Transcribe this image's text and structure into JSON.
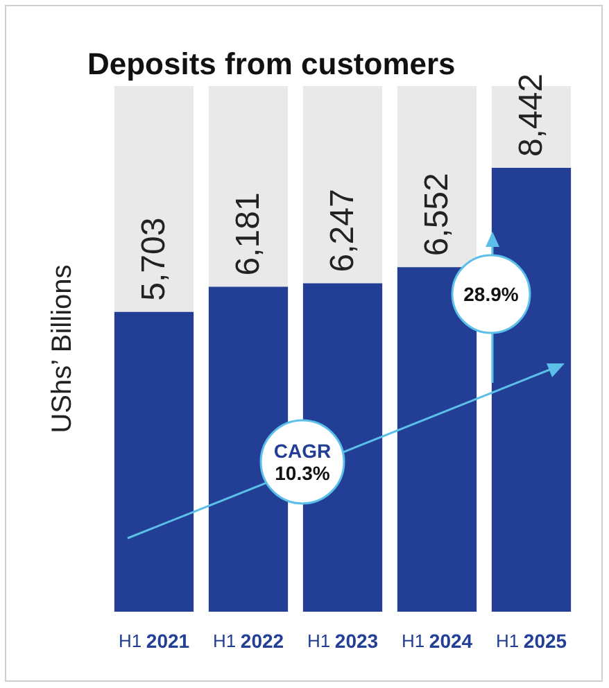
{
  "chart_data": {
    "type": "bar",
    "title": "Deposits from customers",
    "ylabel": "UShs’ Billions",
    "categories": [
      "H1 2021",
      "H1 2022",
      "H1 2023",
      "H1 2024",
      "H1 2025"
    ],
    "values": [
      5703,
      6181,
      6247,
      6552,
      8442
    ],
    "color": "#223f95",
    "value_labels": [
      "5,703",
      "6,181",
      "6,247",
      "6,552",
      "8,442"
    ],
    "annotations": [
      "CAGR\n10.3%",
      "28.9%"
    ],
    "grid": false
  }
}
